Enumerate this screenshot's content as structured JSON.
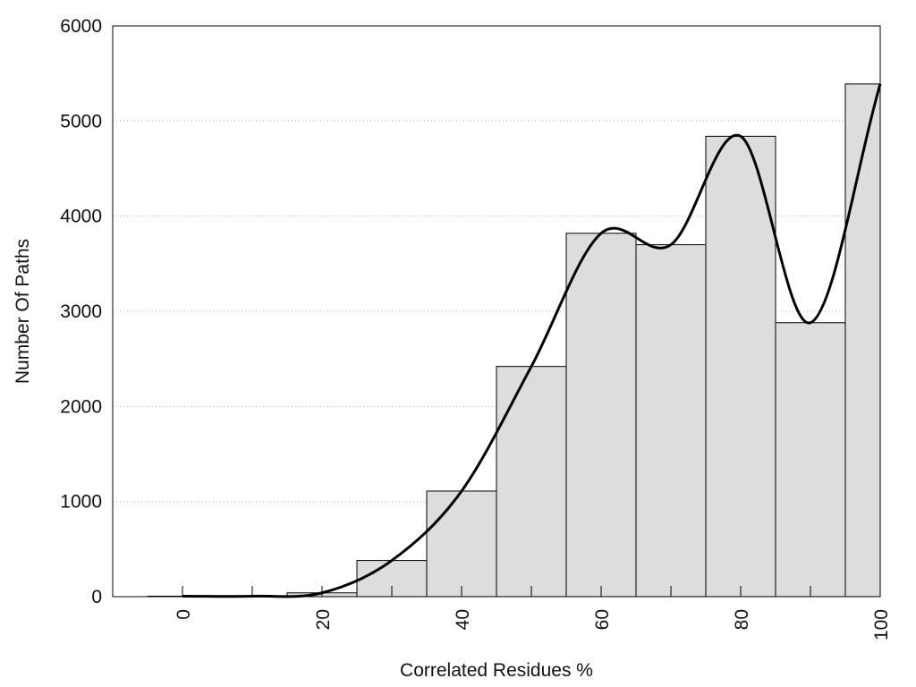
{
  "chart_data": {
    "type": "bar",
    "title": "",
    "xlabel": "Correlated Residues %",
    "ylabel": "Number Of Paths",
    "xlim": [
      -10,
      100
    ],
    "ylim": [
      0,
      6000
    ],
    "x_ticks": [
      "0",
      "20",
      "40",
      "60",
      "80",
      "100"
    ],
    "y_ticks": [
      "0",
      "1000",
      "2000",
      "3000",
      "4000",
      "5000",
      "6000"
    ],
    "grid": "horizontal dotted",
    "bin_width": 10,
    "categories": [
      "0",
      "10",
      "20",
      "30",
      "40",
      "50",
      "60",
      "70",
      "80",
      "90",
      "100"
    ],
    "values": [
      5,
      5,
      40,
      380,
      1110,
      2420,
      3820,
      3700,
      4840,
      2880,
      5390
    ],
    "curve": {
      "x": [
        0,
        10,
        20,
        30,
        40,
        50,
        60,
        70,
        80,
        90,
        100
      ],
      "y": [
        5,
        5,
        40,
        380,
        1110,
        2420,
        3820,
        3700,
        4840,
        2880,
        5390
      ]
    },
    "colors": {
      "bar_fill": "#dddddd",
      "bar_stroke": "#000000",
      "curve": "#000000"
    }
  }
}
